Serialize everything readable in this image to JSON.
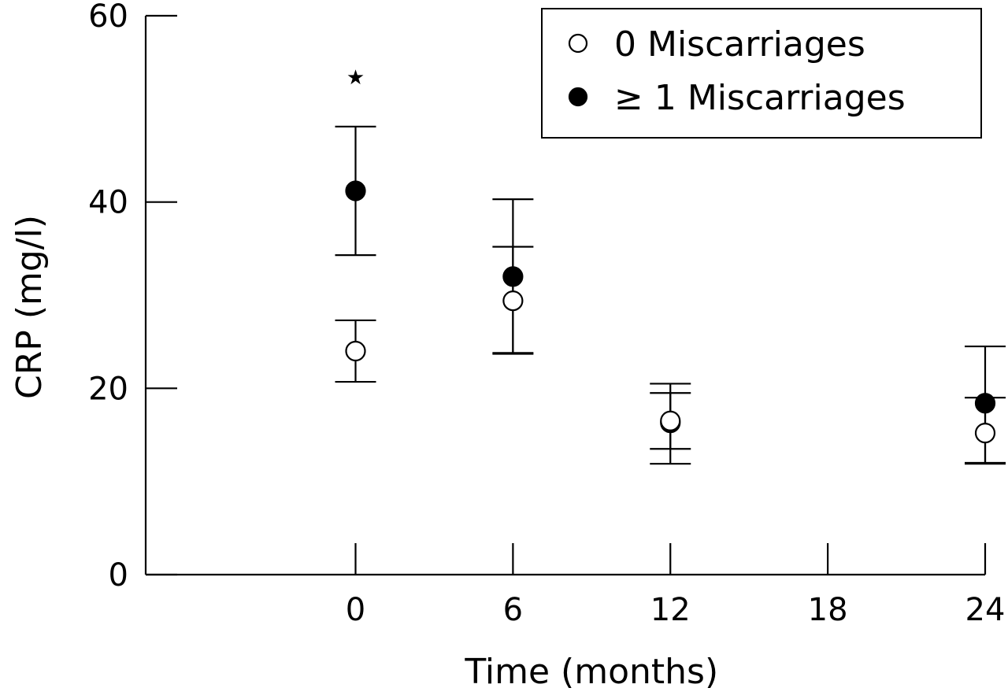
{
  "chart_data": {
    "type": "scatter",
    "xlabel": "Time (months)",
    "ylabel": "CRP (mg/l)",
    "xlim": [
      -8,
      24
    ],
    "ylim": [
      0,
      60
    ],
    "xticks": [
      0,
      6,
      12,
      18,
      24
    ],
    "yticks": [
      0,
      20,
      40,
      60
    ],
    "legend_position": "top-right",
    "grid": false,
    "series": [
      {
        "name": "0 Miscarriages",
        "marker": "open-circle",
        "color": "#000000",
        "points": [
          {
            "x": 0,
            "y": 24,
            "err_low": 20.7,
            "err_high": 27.3
          },
          {
            "x": 6,
            "y": 29.4,
            "err_low": 23.7,
            "err_high": 35.2
          },
          {
            "x": 12,
            "y": 16.5,
            "err_low": 13.5,
            "err_high": 19.5
          },
          {
            "x": 24,
            "y": 15.2,
            "err_low": 11.9,
            "err_high": 19
          }
        ]
      },
      {
        "name": "≥ 1 Miscarriages",
        "marker": "filled-circle",
        "color": "#000000",
        "points": [
          {
            "x": 0,
            "y": 41.2,
            "err_low": 34.3,
            "err_high": 48.1
          },
          {
            "x": 6,
            "y": 32,
            "err_low": 23.8,
            "err_high": 40.3
          },
          {
            "x": 12,
            "y": 16.3,
            "err_low": 11.9,
            "err_high": 20.5
          },
          {
            "x": 24,
            "y": 18.4,
            "err_low": 12,
            "err_high": 24.5
          }
        ]
      }
    ],
    "annotations": [
      {
        "text": "★",
        "x": 0,
        "y": 53.5
      }
    ]
  }
}
